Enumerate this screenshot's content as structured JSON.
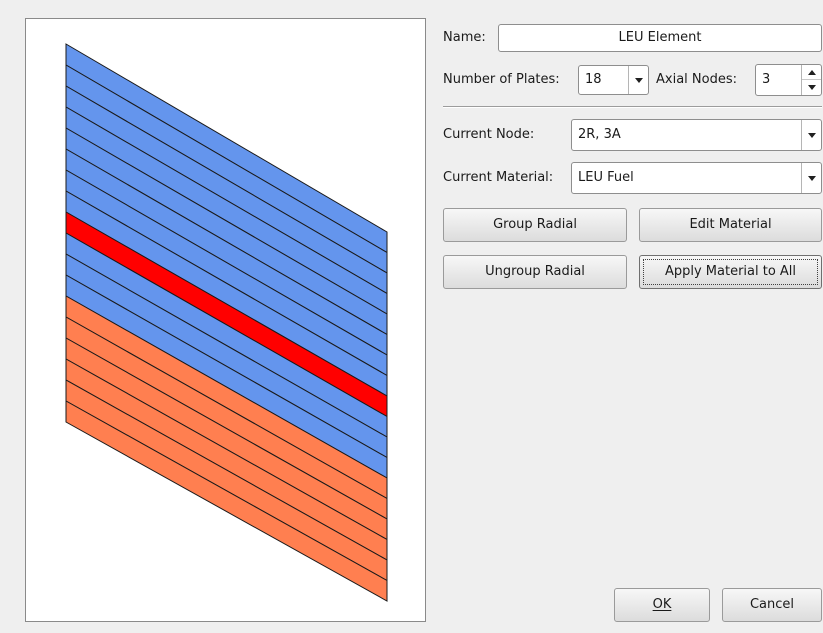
{
  "form": {
    "name_label": "Name:",
    "name_value": "LEU Element",
    "plates_label": "Number of Plates:",
    "plates_value": "18",
    "axial_label": "Axial Nodes:",
    "axial_value": "3",
    "node_label": "Current Node:",
    "node_value": "2R, 3A",
    "material_label": "Current Material:",
    "material_value": "LEU Fuel"
  },
  "buttons": {
    "group_radial": "Group Radial",
    "edit_material": "Edit Material",
    "ungroup_radial": "Ungroup Radial",
    "apply_all": "Apply Material to All",
    "ok": "OK",
    "cancel": "Cancel"
  },
  "element_view": {
    "plate_count": 18,
    "axial_nodes": 3,
    "selected_plate": 8,
    "plate_materials": [
      "LEU Fuel",
      "LEU Fuel",
      "LEU Fuel",
      "LEU Fuel",
      "LEU Fuel",
      "LEU Fuel",
      "LEU Fuel",
      "LEU Fuel",
      "LEU Fuel",
      "LEU Fuel",
      "LEU Fuel",
      "LEU Fuel",
      "LEU Fuel",
      "LEU Fuel",
      "LEU Fuel",
      "LEU Fuel",
      "LEU Fuel",
      "LEU Fuel"
    ],
    "colors": {
      "upper": "#6495ed",
      "lower": "#ff7f50",
      "selected": "#ff0000",
      "outline": "#1a1a1a"
    }
  }
}
